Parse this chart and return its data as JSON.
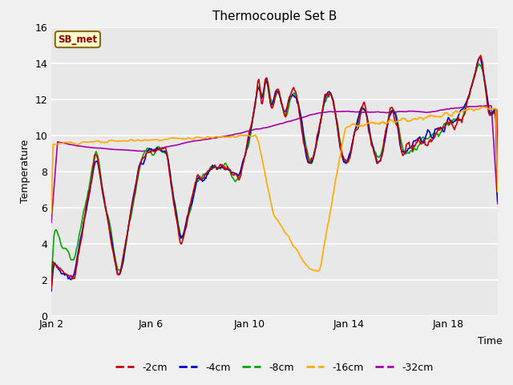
{
  "title": "Thermocouple Set B",
  "xlabel": "Time",
  "ylabel": "Temperature",
  "annotation": "SB_met",
  "figure_bg": "#f0f0f0",
  "plot_bg": "#e8e8e8",
  "ylim": [
    0,
    16
  ],
  "yticks": [
    0,
    2,
    4,
    6,
    8,
    10,
    12,
    14,
    16
  ],
  "xtick_positions": [
    0,
    4,
    8,
    12,
    16
  ],
  "xtick_labels": [
    "Jan 2",
    "Jan 6",
    "Jan 10",
    "Jan 14",
    "Jan 18"
  ],
  "xlim": [
    0,
    18
  ],
  "legend_labels": [
    "-2cm",
    "-4cm",
    "-8cm",
    "-16cm",
    "-32cm"
  ],
  "legend_colors": [
    "#cc0000",
    "#0000cc",
    "#00aa00",
    "#ffaa00",
    "#aa00aa"
  ],
  "lw": 1.2
}
